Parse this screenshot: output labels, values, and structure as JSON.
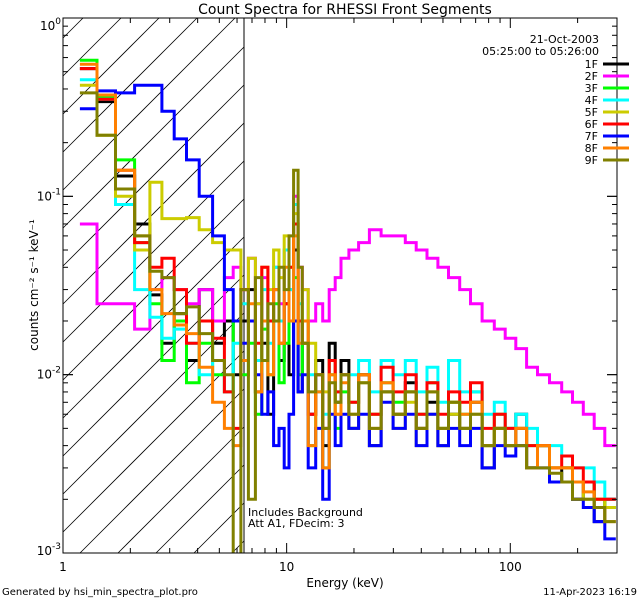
{
  "chart_data": {
    "type": "line",
    "title": "Count Spectra for RHESSI Front Segments",
    "xlabel": "Energy (keV)",
    "ylabel": "counts cm⁻² s⁻¹ keV⁻¹",
    "xscale": "log",
    "yscale": "log",
    "xlim": [
      1,
      300
    ],
    "ylim": [
      0.001,
      1
    ],
    "x_tick_labels": [
      "1",
      "10",
      "100"
    ],
    "y_tick_labels": [
      {
        "base": "10",
        "exp": "0"
      },
      {
        "base": "10",
        "exp": "-1"
      },
      {
        "base": "10",
        "exp": "-2"
      },
      {
        "base": "10",
        "exp": "-3"
      }
    ],
    "date": "21-Oct-2003",
    "time_range": "05:25:00 to 05:26:00",
    "annotations": [
      "Includes Background",
      "Att A1, FDecim: 3"
    ],
    "attenuator_boundary_keV": 6.2,
    "legend_placement": "top-right",
    "energy_keV": [
      1.3,
      1.55,
      1.9,
      2.3,
      2.6,
      2.95,
      3.35,
      3.8,
      4.35,
      5.0,
      5.55,
      6.0,
      6.5,
      7.0,
      7.5,
      8.0,
      8.5,
      9.0,
      9.5,
      10,
      10.5,
      11,
      11.5,
      12,
      13,
      14,
      15,
      16,
      17,
      18,
      20,
      22,
      25,
      28,
      32,
      36,
      40,
      45,
      50,
      56,
      63,
      70,
      80,
      90,
      100,
      112,
      125,
      140,
      160,
      180,
      200,
      225,
      250,
      280
    ],
    "series": [
      {
        "name": "1F",
        "color": "#000000",
        "values": [
          0.52,
          0.34,
          0.13,
          0.07,
          0.028,
          0.015,
          0.022,
          0.012,
          0.03,
          0.015,
          0.02,
          0.01,
          0.02,
          0.03,
          0.008,
          0.015,
          0.006,
          0.02,
          0.012,
          0.025,
          0.01,
          0.05,
          0.008,
          0.02,
          0.006,
          0.012,
          0.004,
          0.015,
          0.007,
          0.012,
          0.005,
          0.01,
          0.004,
          0.008,
          0.006,
          0.009,
          0.005,
          0.007,
          0.004,
          0.006,
          0.005,
          0.007,
          0.003,
          0.005,
          0.004,
          0.006,
          0.003,
          0.004,
          0.0025,
          0.003,
          0.002,
          0.0025,
          0.0015,
          0.002
        ]
      },
      {
        "name": "2F",
        "color": "#ff00ff",
        "values": [
          0.07,
          0.025,
          0.025,
          0.018,
          0.03,
          0.035,
          0.03,
          0.025,
          0.03,
          0.02,
          0.035,
          0.04,
          0.03,
          0.045,
          0.025,
          0.035,
          0.02,
          0.04,
          0.025,
          0.05,
          0.03,
          0.1,
          0.04,
          0.03,
          0.02,
          0.025,
          0.02,
          0.03,
          0.035,
          0.045,
          0.05,
          0.055,
          0.065,
          0.06,
          0.06,
          0.055,
          0.05,
          0.045,
          0.04,
          0.035,
          0.03,
          0.025,
          0.02,
          0.018,
          0.016,
          0.014,
          0.011,
          0.01,
          0.009,
          0.008,
          0.007,
          0.006,
          0.005,
          0.004
        ]
      },
      {
        "name": "3F",
        "color": "#00ff00",
        "values": [
          0.58,
          0.36,
          0.16,
          0.055,
          0.025,
          0.012,
          0.02,
          0.009,
          0.015,
          0.01,
          0.008,
          0.02,
          0.01,
          0.015,
          0.006,
          0.018,
          0.01,
          0.025,
          0.009,
          0.015,
          0.02,
          0.035,
          0.01,
          0.015,
          0.004,
          0.008,
          0.003,
          0.01,
          0.005,
          0.008,
          0.007,
          0.01,
          0.006,
          0.009,
          0.007,
          0.008,
          0.006,
          0.009,
          0.005,
          0.007,
          0.006,
          0.008,
          0.004,
          0.006,
          0.005,
          0.005,
          0.004,
          0.004,
          0.003,
          0.003,
          0.0025,
          0.0025,
          0.002,
          0.0018
        ]
      },
      {
        "name": "4F",
        "color": "#00ffff",
        "values": [
          0.45,
          0.35,
          0.09,
          0.03,
          0.021,
          0.016,
          0.018,
          0.015,
          0.01,
          0.012,
          0.008,
          0.015,
          0.025,
          0.02,
          0.012,
          0.03,
          0.015,
          0.04,
          0.02,
          0.05,
          0.03,
          0.09,
          0.025,
          0.02,
          0.01,
          0.008,
          0.006,
          0.012,
          0.008,
          0.01,
          0.01,
          0.012,
          0.008,
          0.012,
          0.01,
          0.012,
          0.008,
          0.011,
          0.007,
          0.012,
          0.008,
          0.008,
          0.006,
          0.007,
          0.005,
          0.006,
          0.005,
          0.004,
          0.004,
          0.0035,
          0.003,
          0.003,
          0.0025,
          0.002
        ]
      },
      {
        "name": "5F",
        "color": "#cccc00",
        "values": [
          0.42,
          0.22,
          0.1,
          0.05,
          0.12,
          0.075,
          0.075,
          0.076,
          0.065,
          0.055,
          0.05,
          0.05,
          0.03,
          0.045,
          0.025,
          0.04,
          0.03,
          0.05,
          0.035,
          0.06,
          0.04,
          0.08,
          0.02,
          0.03,
          0.015,
          0.01,
          0.008,
          0.012,
          0.006,
          0.01,
          0.005,
          0.009,
          0.006,
          0.008,
          0.005,
          0.007,
          0.004,
          0.006,
          0.004,
          0.006,
          0.005,
          0.006,
          0.004,
          0.005,
          0.004,
          0.004,
          0.003,
          0.004,
          0.003,
          0.003,
          0.0025,
          0.002,
          0.002,
          0.0018
        ]
      },
      {
        "name": "6F",
        "color": "#ff0000",
        "values": [
          0.52,
          0.35,
          0.14,
          0.055,
          0.04,
          0.045,
          0.03,
          0.015,
          0.02,
          0.016,
          0.008,
          0.005,
          0.03,
          0.02,
          0.015,
          0.04,
          0.02,
          0.03,
          0.015,
          0.025,
          0.04,
          0.07,
          0.02,
          0.015,
          0.006,
          0.01,
          0.005,
          0.012,
          0.008,
          0.01,
          0.007,
          0.01,
          0.006,
          0.011,
          0.008,
          0.01,
          0.006,
          0.009,
          0.006,
          0.008,
          0.007,
          0.009,
          0.005,
          0.006,
          0.005,
          0.005,
          0.004,
          0.004,
          0.003,
          0.0035,
          0.003,
          0.0025,
          0.002,
          0.002
        ]
      },
      {
        "name": "7F",
        "color": "#0000ff",
        "values": [
          0.31,
          0.39,
          0.38,
          0.42,
          0.42,
          0.3,
          0.21,
          0.16,
          0.1,
          0.06,
          0.03,
          0.02,
          0.015,
          0.02,
          0.01,
          0.006,
          0.008,
          0.004,
          0.005,
          0.003,
          0.006,
          0.02,
          0.008,
          0.01,
          0.003,
          0.005,
          0.002,
          0.006,
          0.004,
          0.006,
          0.005,
          0.006,
          0.004,
          0.007,
          0.005,
          0.006,
          0.004,
          0.006,
          0.004,
          0.005,
          0.004,
          0.005,
          0.003,
          0.004,
          0.0035,
          0.004,
          0.003,
          0.003,
          0.0025,
          0.0025,
          0.002,
          0.0018,
          0.0015,
          0.0012
        ]
      },
      {
        "name": "8F",
        "color": "#ff8000",
        "values": [
          0.55,
          0.37,
          0.14,
          0.06,
          0.03,
          0.022,
          0.019,
          0.017,
          0.011,
          0.007,
          0.005,
          0.004,
          0.012,
          0.025,
          0.008,
          0.02,
          0.01,
          0.03,
          0.015,
          0.04,
          0.02,
          0.06,
          0.015,
          0.02,
          0.004,
          0.008,
          0.003,
          0.01,
          0.006,
          0.009,
          0.006,
          0.01,
          0.005,
          0.009,
          0.006,
          0.008,
          0.005,
          0.008,
          0.005,
          0.007,
          0.006,
          0.007,
          0.004,
          0.005,
          0.004,
          0.005,
          0.003,
          0.004,
          0.003,
          0.003,
          0.0025,
          0.0022,
          0.0018,
          0.0015
        ]
      },
      {
        "name": "9F",
        "color": "#808000",
        "values": [
          0.38,
          0.22,
          0.11,
          0.06,
          0.038,
          0.035,
          0.022,
          0.024,
          0.017,
          0.012,
          0.01,
          0.0008,
          0.03,
          0.002,
          0.035,
          0.012,
          0.025,
          0.02,
          0.04,
          0.03,
          0.06,
          0.14,
          0.04,
          0.015,
          0.008,
          0.01,
          0.005,
          0.009,
          0.007,
          0.01,
          0.006,
          0.009,
          0.005,
          0.008,
          0.006,
          0.008,
          0.005,
          0.008,
          0.005,
          0.007,
          0.005,
          0.006,
          0.004,
          0.005,
          0.004,
          0.004,
          0.003,
          0.003,
          0.0028,
          0.0025,
          0.002,
          0.002,
          0.0018,
          0.0015
        ]
      }
    ]
  },
  "footer": {
    "generated_by": "Generated by hsi_min_spectra_plot.pro",
    "timestamp": "11-Apr-2023 16:19"
  }
}
